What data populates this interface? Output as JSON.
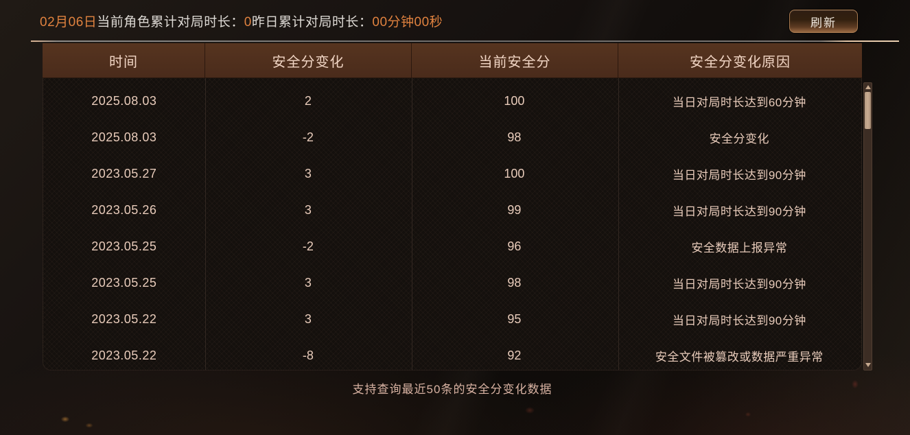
{
  "header": {
    "date": "02月06日",
    "today_label": "当前角色累计对局时长：",
    "today_value": "0",
    "yesterday_label": "昨日累计对局时长：",
    "yesterday_value": "00分钟00秒",
    "refresh_label": "刷新"
  },
  "table": {
    "columns": [
      "时间",
      "安全分变化",
      "当前安全分",
      "安全分变化原因"
    ],
    "rows": [
      [
        "2025.08.03",
        "2",
        "100",
        "当日对局时长达到60分钟"
      ],
      [
        "2025.08.03",
        "-2",
        "98",
        "安全分变化"
      ],
      [
        "2023.05.27",
        "3",
        "100",
        "当日对局时长达到90分钟"
      ],
      [
        "2023.05.26",
        "3",
        "99",
        "当日对局时长达到90分钟"
      ],
      [
        "2023.05.25",
        "-2",
        "96",
        "安全数据上报异常"
      ],
      [
        "2023.05.25",
        "3",
        "98",
        "当日对局时长达到90分钟"
      ],
      [
        "2023.05.22",
        "3",
        "95",
        "当日对局时长达到90分钟"
      ],
      [
        "2023.05.22",
        "-8",
        "92",
        "安全文件被篡改或数据严重异常"
      ]
    ]
  },
  "footer": {
    "note": "支持查询最近50条的安全分变化数据"
  },
  "icons": {
    "scroll_up": "up-triangle",
    "scroll_down": "down-triangle"
  },
  "colors": {
    "accent_orange": "#e0823f",
    "table_header_bg": "#4e2e1d",
    "cell_text": "#e9ccbb",
    "scroll_thumb": "#c2a58d"
  }
}
